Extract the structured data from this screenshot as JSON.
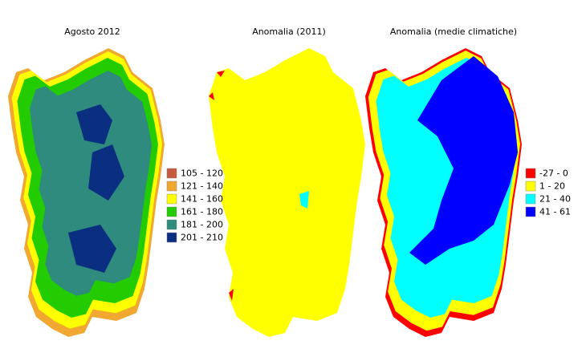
{
  "panels": [
    {
      "title": "Agosto 2012"
    },
    {
      "title": "Anomalia (2011)"
    },
    {
      "title": "Anomalia (medie climatiche)"
    }
  ],
  "legends": [
    {
      "items": [
        {
          "label": "105 - 120",
          "color": "#c65a3e"
        },
        {
          "label": "121 - 140",
          "color": "#f0a830"
        },
        {
          "label": "141 - 160",
          "color": "#ffff00"
        },
        {
          "label": "161 - 180",
          "color": "#22cc00"
        },
        {
          "label": "181 - 200",
          "color": "#2e8b7e"
        },
        {
          "label": "201 - 210",
          "color": "#0b2f80"
        }
      ]
    },
    {
      "items": [
        {
          "label": "-27 - 0",
          "color": "#ff0000"
        },
        {
          "label": "1 - 20",
          "color": "#ffff00"
        },
        {
          "label": "21 - 40",
          "color": "#00ffff"
        },
        {
          "label": "41 - 61",
          "color": "#0000ff"
        }
      ]
    }
  ]
}
